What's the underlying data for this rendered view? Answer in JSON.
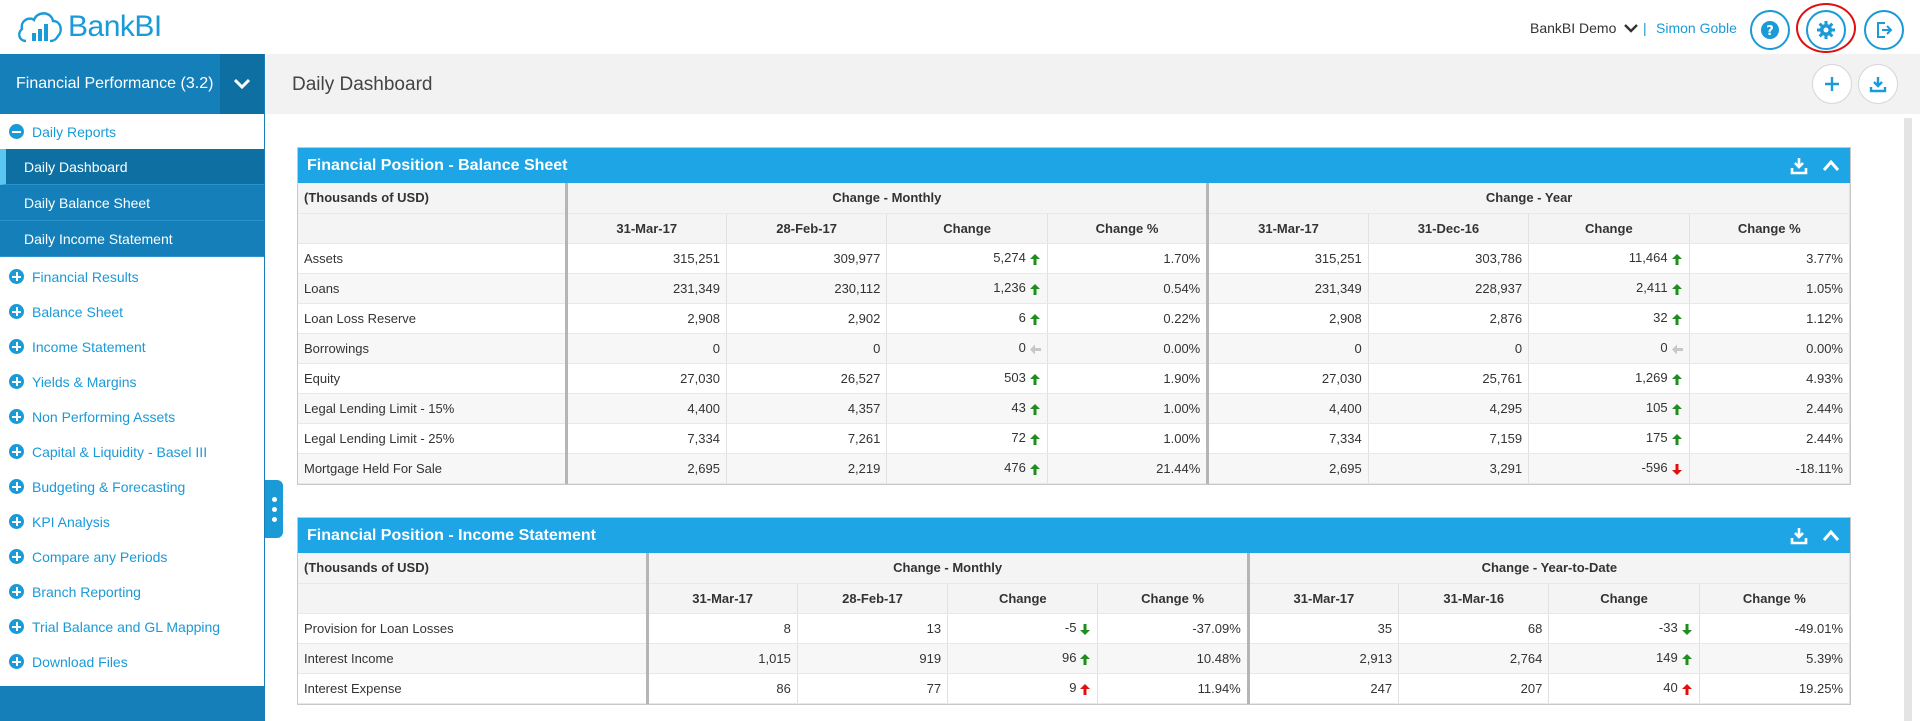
{
  "app": {
    "brand": "BankBI",
    "org": "BankBI Demo",
    "separator": "|",
    "user": "Simon Goble"
  },
  "colors": {
    "accent": "#1a9ad7",
    "up": "#1e8f1e",
    "down": "#e01010",
    "flat": "#c8c8c8"
  },
  "header": {
    "icons": [
      "help-icon",
      "gear-icon",
      "logout-icon"
    ]
  },
  "sidebar": {
    "title": "Financial Performance (3.2)",
    "open_section": "Daily Reports",
    "sub_items": [
      {
        "label": "Daily Dashboard",
        "active": true
      },
      {
        "label": "Daily Balance Sheet",
        "active": false
      },
      {
        "label": "Daily Income Statement",
        "active": false
      }
    ],
    "items": [
      "Financial Results",
      "Balance Sheet",
      "Income Statement",
      "Yields & Margins",
      "Non Performing Assets",
      "Capital & Liquidity - Basel III",
      "Budgeting & Forecasting",
      "KPI Analysis",
      "Compare any Periods",
      "Branch Reporting",
      "Trial Balance and GL Mapping",
      "Download Files"
    ]
  },
  "main": {
    "title": "Daily Dashboard"
  },
  "balance_sheet": {
    "title": "Financial Position - Balance Sheet",
    "unit_label": "(Thousands of USD)",
    "group1": "Change - Monthly",
    "group2": "Change - Year",
    "columns": [
      "31-Mar-17",
      "28-Feb-17",
      "Change",
      "Change %",
      "31-Mar-17",
      "31-Dec-16",
      "Change",
      "Change %"
    ],
    "rows": [
      {
        "label": "Assets",
        "v": [
          "315,251",
          "309,977",
          "5,274",
          "1.70%",
          "315,251",
          "303,786",
          "11,464",
          "3.77%"
        ],
        "a1": "up",
        "a2": "up"
      },
      {
        "label": "Loans",
        "v": [
          "231,349",
          "230,112",
          "1,236",
          "0.54%",
          "231,349",
          "228,937",
          "2,411",
          "1.05%"
        ],
        "a1": "up",
        "a2": "up"
      },
      {
        "label": "Loan Loss Reserve",
        "v": [
          "2,908",
          "2,902",
          "6",
          "0.22%",
          "2,908",
          "2,876",
          "32",
          "1.12%"
        ],
        "a1": "up",
        "a2": "up"
      },
      {
        "label": "Borrowings",
        "v": [
          "0",
          "0",
          "0",
          "0.00%",
          "0",
          "0",
          "0",
          "0.00%"
        ],
        "a1": "flat",
        "a2": "flat"
      },
      {
        "label": "Equity",
        "v": [
          "27,030",
          "26,527",
          "503",
          "1.90%",
          "27,030",
          "25,761",
          "1,269",
          "4.93%"
        ],
        "a1": "up",
        "a2": "up"
      },
      {
        "label": "Legal Lending Limit - 15%",
        "v": [
          "4,400",
          "4,357",
          "43",
          "1.00%",
          "4,400",
          "4,295",
          "105",
          "2.44%"
        ],
        "a1": "up",
        "a2": "up"
      },
      {
        "label": "Legal Lending Limit - 25%",
        "v": [
          "7,334",
          "7,261",
          "72",
          "1.00%",
          "7,334",
          "7,159",
          "175",
          "2.44%"
        ],
        "a1": "up",
        "a2": "up"
      },
      {
        "label": "Mortgage Held For Sale",
        "v": [
          "2,695",
          "2,219",
          "476",
          "21.44%",
          "2,695",
          "3,291",
          "-596",
          "-18.11%"
        ],
        "a1": "up",
        "a2": "down-red"
      }
    ]
  },
  "income_statement": {
    "title": "Financial Position - Income Statement",
    "unit_label": "(Thousands of USD)",
    "group1": "Change - Monthly",
    "group2": "Change - Year-to-Date",
    "columns": [
      "31-Mar-17",
      "28-Feb-17",
      "Change",
      "Change %",
      "31-Mar-17",
      "31-Mar-16",
      "Change",
      "Change %"
    ],
    "rows": [
      {
        "label": "Provision for Loan Losses",
        "v": [
          "8",
          "13",
          "-5",
          "-37.09%",
          "35",
          "68",
          "-33",
          "-49.01%"
        ],
        "a1": "down-green",
        "a2": "down-green"
      },
      {
        "label": "Interest Income",
        "v": [
          "1,015",
          "919",
          "96",
          "10.48%",
          "2,913",
          "2,764",
          "149",
          "5.39%"
        ],
        "a1": "up",
        "a2": "up"
      },
      {
        "label": "Interest Expense",
        "v": [
          "86",
          "77",
          "9",
          "11.94%",
          "247",
          "207",
          "40",
          "19.25%"
        ],
        "a1": "up-red",
        "a2": "up-red"
      }
    ]
  }
}
